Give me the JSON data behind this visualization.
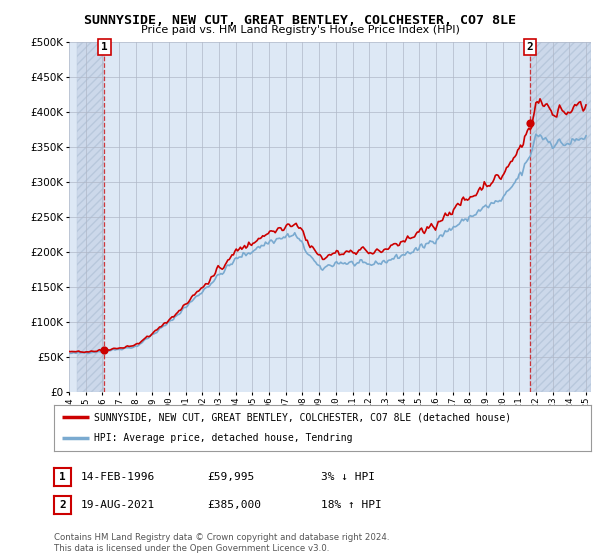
{
  "title": "SUNNYSIDE, NEW CUT, GREAT BENTLEY, COLCHESTER, CO7 8LE",
  "subtitle": "Price paid vs. HM Land Registry's House Price Index (HPI)",
  "ylim": [
    0,
    500000
  ],
  "yticks": [
    0,
    50000,
    100000,
    150000,
    200000,
    250000,
    300000,
    350000,
    400000,
    450000,
    500000
  ],
  "ytick_labels": [
    "£0",
    "£50K",
    "£100K",
    "£150K",
    "£200K",
    "£250K",
    "£300K",
    "£350K",
    "£400K",
    "£450K",
    "£500K"
  ],
  "sale1_year": 1996.12,
  "sale1_price": 59995,
  "sale1_label": "1",
  "sale2_year": 2021.63,
  "sale2_price": 385000,
  "sale2_label": "2",
  "sale1_text": "14-FEB-1996",
  "sale1_amount": "£59,995",
  "sale1_hpi": "3% ↓ HPI",
  "sale2_text": "19-AUG-2021",
  "sale2_amount": "£385,000",
  "sale2_hpi": "18% ↑ HPI",
  "legend_line1": "SUNNYSIDE, NEW CUT, GREAT BENTLEY, COLCHESTER, CO7 8LE (detached house)",
  "legend_line2": "HPI: Average price, detached house, Tendring",
  "footer": "Contains HM Land Registry data © Crown copyright and database right 2024.\nThis data is licensed under the Open Government Licence v3.0.",
  "price_color": "#cc0000",
  "hpi_color": "#7aaad0",
  "background_plot": "#dde8f5",
  "background_hatch": "#ccd8ea",
  "grid_color": "#b0b8c8",
  "annotation_box_color": "#cc0000",
  "xlim_left": 1994.5,
  "xlim_right": 2025.3
}
